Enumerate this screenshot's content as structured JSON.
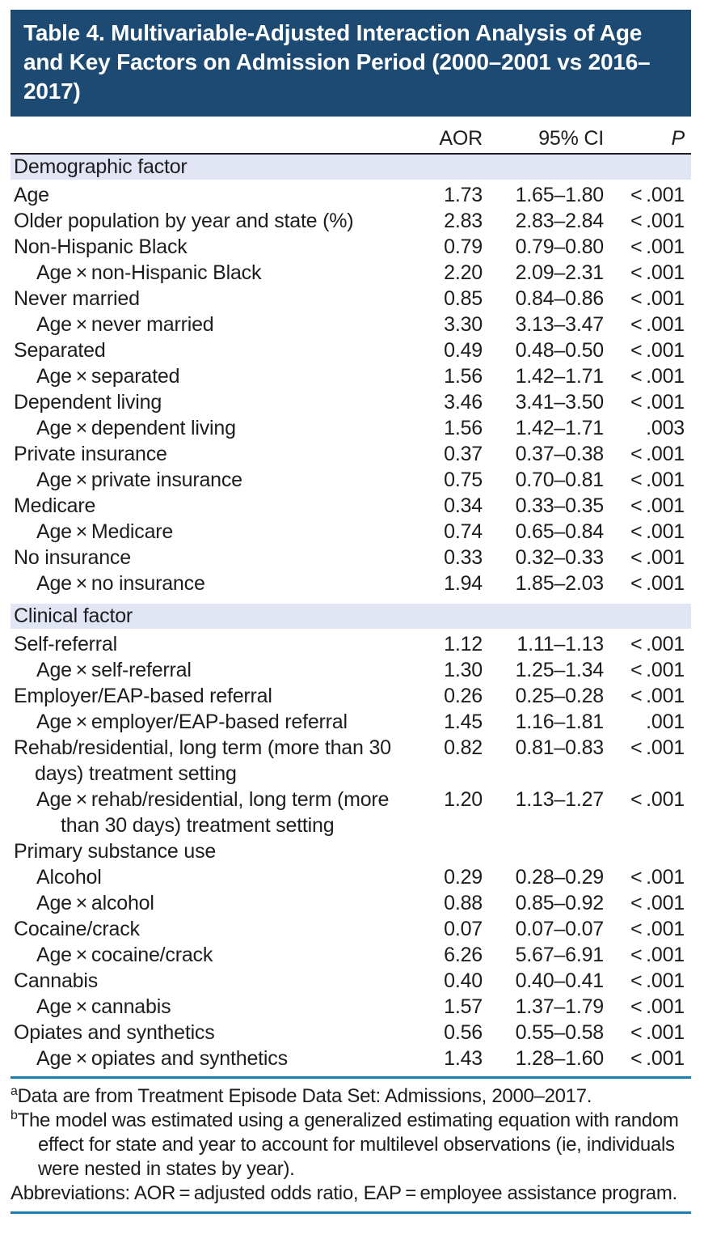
{
  "title": "Table 4. Multivariable-Adjusted Interaction Analysis of Age and Key Factors on Admission Period (2000–2001 vs 2016–2017)",
  "columns": {
    "aor": "AOR",
    "ci": "95% CI",
    "p": "P"
  },
  "table": {
    "sections": [
      {
        "header": "Demographic factor",
        "rows": [
          {
            "label": "Age",
            "indent": 0,
            "aor": "1.73",
            "ci": "1.65–1.80",
            "p": "< .001"
          },
          {
            "label": "Older population by year and state (%)",
            "indent": 0,
            "aor": "2.83",
            "ci": "2.83–2.84",
            "p": "< .001"
          },
          {
            "label": "Non-Hispanic Black",
            "indent": 0,
            "aor": "0.79",
            "ci": "0.79–0.80",
            "p": "< .001"
          },
          {
            "label": "Age × non-Hispanic Black",
            "indent": 1,
            "aor": "2.20",
            "ci": "2.09–2.31",
            "p": "< .001"
          },
          {
            "label": "Never married",
            "indent": 0,
            "aor": "0.85",
            "ci": "0.84–0.86",
            "p": "< .001"
          },
          {
            "label": "Age × never married",
            "indent": 1,
            "aor": "3.30",
            "ci": "3.13–3.47",
            "p": "< .001"
          },
          {
            "label": "Separated",
            "indent": 0,
            "aor": "0.49",
            "ci": "0.48–0.50",
            "p": "< .001"
          },
          {
            "label": "Age × separated",
            "indent": 1,
            "aor": "1.56",
            "ci": "1.42–1.71",
            "p": "< .001"
          },
          {
            "label": "Dependent living",
            "indent": 0,
            "aor": "3.46",
            "ci": "3.41–3.50",
            "p": "< .001"
          },
          {
            "label": "Age × dependent living",
            "indent": 1,
            "aor": "1.56",
            "ci": "1.42–1.71",
            "p": ".003"
          },
          {
            "label": "Private insurance",
            "indent": 0,
            "aor": "0.37",
            "ci": "0.37–0.38",
            "p": "< .001"
          },
          {
            "label": "Age × private insurance",
            "indent": 1,
            "aor": "0.75",
            "ci": "0.70–0.81",
            "p": "< .001"
          },
          {
            "label": "Medicare",
            "indent": 0,
            "aor": "0.34",
            "ci": "0.33–0.35",
            "p": "< .001"
          },
          {
            "label": "Age × Medicare",
            "indent": 1,
            "aor": "0.74",
            "ci": "0.65–0.84",
            "p": "< .001"
          },
          {
            "label": "No insurance",
            "indent": 0,
            "aor": "0.33",
            "ci": "0.32–0.33",
            "p": "< .001"
          },
          {
            "label": "Age × no insurance",
            "indent": 1,
            "aor": "1.94",
            "ci": "1.85–2.03",
            "p": "< .001"
          }
        ]
      },
      {
        "header": "Clinical factor",
        "rows": [
          {
            "label": "Self-referral",
            "indent": 0,
            "aor": "1.12",
            "ci": "1.11–1.13",
            "p": "< .001"
          },
          {
            "label": "Age × self-referral",
            "indent": 1,
            "aor": "1.30",
            "ci": "1.25–1.34",
            "p": "< .001"
          },
          {
            "label": "Employer/EAP-based referral",
            "indent": 0,
            "aor": "0.26",
            "ci": "0.25–0.28",
            "p": "< .001"
          },
          {
            "label": "Age × employer/EAP-based referral",
            "indent": 1,
            "aor": "1.45",
            "ci": "1.16–1.81",
            "p": ".001"
          },
          {
            "label": "Rehab/residential, long term (more than 30 days) treatment setting",
            "indent": 0,
            "aor": "0.82",
            "ci": "0.81–0.83",
            "p": "< .001"
          },
          {
            "label": "Age × rehab/residential, long term (more than 30 days) treatment setting",
            "indent": 1,
            "aor": "1.20",
            "ci": "1.13–1.27",
            "p": "< .001"
          },
          {
            "label": "Primary substance use",
            "indent": 0,
            "aor": "",
            "ci": "",
            "p": ""
          },
          {
            "label": "Alcohol",
            "indent": 1,
            "aor": "0.29",
            "ci": "0.28–0.29",
            "p": "< .001"
          },
          {
            "label": "Age × alcohol",
            "indent": 1,
            "aor": "0.88",
            "ci": "0.85–0.92",
            "p": "< .001"
          },
          {
            "label": "Cocaine/crack",
            "indent": 0,
            "aor": "0.07",
            "ci": "0.07–0.07",
            "p": "< .001"
          },
          {
            "label": "Age × cocaine/crack",
            "indent": 1,
            "aor": "6.26",
            "ci": "5.67–6.91",
            "p": "< .001"
          },
          {
            "label": "Cannabis",
            "indent": 0,
            "aor": "0.40",
            "ci": "0.40–0.41",
            "p": "< .001"
          },
          {
            "label": "Age × cannabis",
            "indent": 1,
            "aor": "1.57",
            "ci": "1.37–1.79",
            "p": "< .001"
          },
          {
            "label": "Opiates and synthetics",
            "indent": 0,
            "aor": "0.56",
            "ci": "0.55–0.58",
            "p": "< .001"
          },
          {
            "label": "Age × opiates and synthetics",
            "indent": 1,
            "aor": "1.43",
            "ci": "1.28–1.60",
            "p": "< .001"
          }
        ]
      }
    ]
  },
  "footnotes": [
    {
      "sup": "a",
      "text": "Data are from Treatment Episode Data Set: Admissions, 2000–2017."
    },
    {
      "sup": "b",
      "text": "The model was estimated using a generalized estimating equation with random effect for state and year to account for multilevel observations (ie, individuals were nested in states by year)."
    },
    {
      "sup": "",
      "text": "Abbreviations: AOR = adjusted odds ratio, EAP = employee assistance program."
    }
  ],
  "colors": {
    "banner_background": "#1c4a73",
    "banner_text": "#ffffff",
    "section_band_background": "#e2e6f4",
    "body_text": "#1d1d1f",
    "header_rule": "#1d1d1f",
    "blue_rule": "#1f7ab0"
  }
}
